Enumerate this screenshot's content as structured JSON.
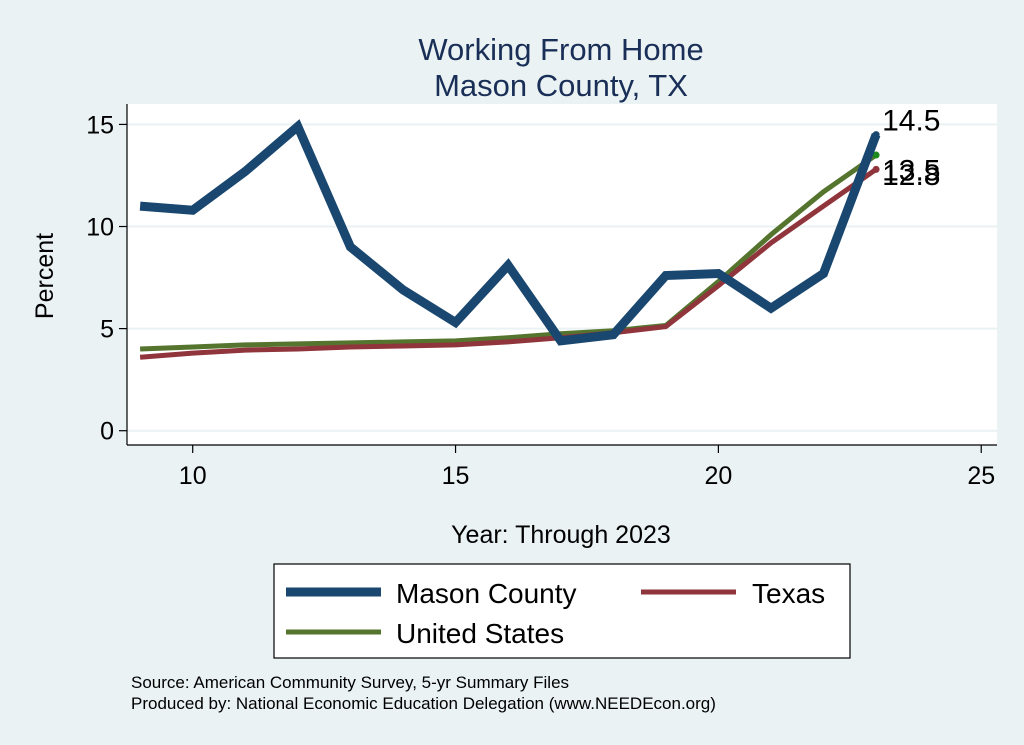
{
  "chart_data": {
    "type": "line",
    "title": "Working From Home",
    "subtitle": "Mason County, TX",
    "xlabel": "Year: Through 2023",
    "ylabel": "Percent",
    "xlim": [
      8.75,
      25.3
    ],
    "ylim": [
      -0.7,
      16
    ],
    "xticks": [
      10,
      15,
      20,
      25
    ],
    "yticks": [
      0,
      5,
      10,
      15
    ],
    "grid": true,
    "legend_position": "bottom",
    "series": [
      {
        "name": "Mason County",
        "color": "#1a476f",
        "x": [
          9,
          10,
          11,
          12,
          13,
          14,
          15,
          16,
          17,
          18,
          19,
          20,
          21,
          22,
          23
        ],
        "y": [
          11.0,
          10.8,
          12.7,
          14.9,
          9.0,
          6.9,
          5.3,
          8.1,
          4.4,
          4.7,
          7.6,
          7.7,
          6.0,
          7.7,
          14.5
        ]
      },
      {
        "name": "Texas",
        "color": "#90353b",
        "x": [
          9,
          10,
          11,
          12,
          13,
          14,
          15,
          16,
          17,
          18,
          19,
          20,
          21,
          22,
          23
        ],
        "y": [
          3.6,
          3.8,
          3.95,
          4.0,
          4.1,
          4.15,
          4.2,
          4.35,
          4.55,
          4.8,
          5.1,
          7.1,
          9.2,
          11.0,
          12.8
        ]
      },
      {
        "name": "United States",
        "color": "#55752f",
        "x": [
          9,
          10,
          11,
          12,
          13,
          14,
          15,
          16,
          17,
          18,
          19,
          20,
          21,
          22,
          23
        ],
        "y": [
          4.0,
          4.1,
          4.2,
          4.25,
          4.3,
          4.35,
          4.4,
          4.55,
          4.75,
          4.9,
          5.15,
          7.3,
          9.6,
          11.7,
          13.5
        ]
      }
    ],
    "end_labels": [
      "14.5",
      "13.5",
      "12.8"
    ]
  },
  "legend": {
    "items": [
      "Mason County",
      "Texas",
      "United States"
    ]
  },
  "notes": {
    "source": "Source: American Community Survey, 5-yr Summary Files",
    "produced_by": "Produced by: National Economic Education Delegation (www.NEEDEcon.org)"
  },
  "colors": {
    "background": "#eaf2f3",
    "plot_background": "#ffffff",
    "grid": "#eaf2f3",
    "title": "#1a2f57"
  }
}
